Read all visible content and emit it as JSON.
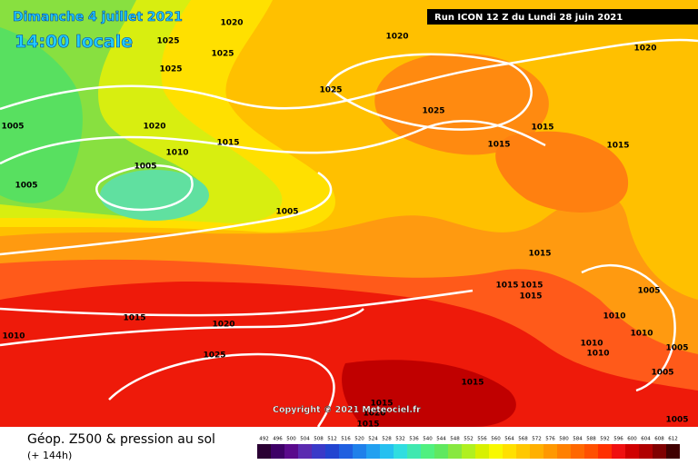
{
  "header": {
    "date": "Dimanche 4 juillet 2021",
    "time": "14:00 locale",
    "run": "Run ICON 12 Z du Lundi 28 juin 2021"
  },
  "copyright": "Copyright © 2021 Meteociel.fr",
  "footer": {
    "title": "Géop. Z500 & pression au sol",
    "lead": "(+ 144h)"
  },
  "isobars": [
    "1020",
    "1025",
    "1025",
    "1025",
    "1020",
    "1020",
    "1005",
    "1020",
    "1010",
    "1015",
    "1005",
    "1025",
    "1025",
    "1015",
    "1015",
    "1015",
    "1005",
    "1005",
    "1015",
    "1015",
    "1015",
    "1015",
    "1005",
    "1010",
    "1010",
    "1010",
    "1005",
    "1010",
    "1005",
    "1015",
    "1020",
    "1010",
    "1025",
    "1015",
    "1015",
    "1020",
    "1015",
    "1005"
  ],
  "legend": {
    "values": [
      492,
      496,
      500,
      504,
      508,
      512,
      516,
      520,
      524,
      528,
      532,
      536,
      540,
      544,
      548,
      552,
      556,
      560,
      564,
      568,
      572,
      576,
      580,
      584,
      588,
      592,
      596,
      600,
      604,
      608,
      612
    ],
    "colors": [
      "#2a0033",
      "#3d0066",
      "#5a0a8c",
      "#5b2bb0",
      "#3a3ac8",
      "#2244d0",
      "#1f5fe0",
      "#1f80ea",
      "#22a0f0",
      "#26c0f0",
      "#30dde0",
      "#40e8b0",
      "#50f080",
      "#60e860",
      "#88e840",
      "#b0f020",
      "#d8f000",
      "#f8f800",
      "#ffe000",
      "#ffc800",
      "#ffb000",
      "#ff9800",
      "#ff8000",
      "#ff6800",
      "#ff5000",
      "#ff3000",
      "#f01010",
      "#d00000",
      "#b00000",
      "#800000",
      "#400000"
    ]
  }
}
